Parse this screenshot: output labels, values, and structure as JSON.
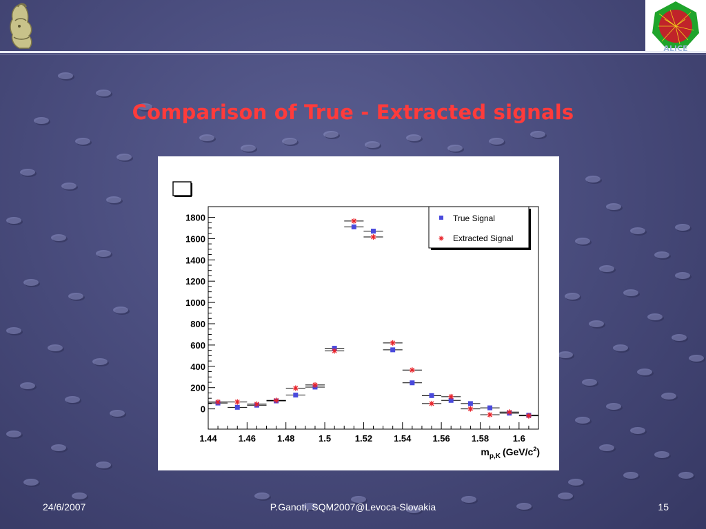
{
  "slide": {
    "title": "Comparison of True - Extracted signals",
    "footer_date": "24/6/2007",
    "footer_center": "P.Ganoti, SQM2007@Levoca-Slovakia",
    "page_number": "15",
    "logo_right_text": "ALICE"
  },
  "colors": {
    "title": "#ff3b3b",
    "true_signal": "#4a4adc",
    "extracted_signal": "#e8232a",
    "background": "#4a4d7e"
  },
  "chart_data": {
    "type": "scatter",
    "title": "",
    "xlabel_main": "m",
    "xlabel_sub": "p,K",
    "xlabel_unit_prefix": "(GeV/c",
    "xlabel_unit_sup": "2",
    "xlabel_unit_suffix": ")",
    "ylabel": "",
    "xlim": [
      1.44,
      1.61
    ],
    "ylim": [
      -190,
      1900
    ],
    "xticks": [
      "1.44",
      "1.46",
      "1.48",
      "1.5",
      "1.52",
      "1.54",
      "1.56",
      "1.58",
      "1.6"
    ],
    "xtick_values": [
      1.44,
      1.46,
      1.48,
      1.5,
      1.52,
      1.54,
      1.56,
      1.58,
      1.6
    ],
    "yticks": [
      "0",
      "200",
      "400",
      "600",
      "800",
      "1000",
      "1200",
      "1400",
      "1600",
      "1800"
    ],
    "ytick_values": [
      0,
      200,
      400,
      600,
      800,
      1000,
      1200,
      1400,
      1600,
      1800
    ],
    "bin_width": 0.01,
    "grid": false,
    "legend_position": "top-right",
    "series": [
      {
        "name": "True Signal",
        "marker": "square",
        "x": [
          1.445,
          1.455,
          1.465,
          1.475,
          1.485,
          1.495,
          1.505,
          1.515,
          1.525,
          1.535,
          1.545,
          1.555,
          1.565,
          1.575,
          1.585,
          1.595,
          1.605
        ],
        "y": [
          55,
          15,
          35,
          75,
          130,
          205,
          570,
          1710,
          1670,
          555,
          245,
          125,
          80,
          50,
          10,
          -40,
          -60
        ]
      },
      {
        "name": "Extracted Signal",
        "marker": "star",
        "x": [
          1.445,
          1.455,
          1.465,
          1.475,
          1.485,
          1.495,
          1.505,
          1.515,
          1.525,
          1.535,
          1.545,
          1.555,
          1.565,
          1.575,
          1.585,
          1.595,
          1.605
        ],
        "y": [
          65,
          65,
          45,
          80,
          195,
          225,
          545,
          1765,
          1615,
          620,
          365,
          50,
          115,
          0,
          -55,
          -30,
          -65
        ]
      }
    ]
  }
}
